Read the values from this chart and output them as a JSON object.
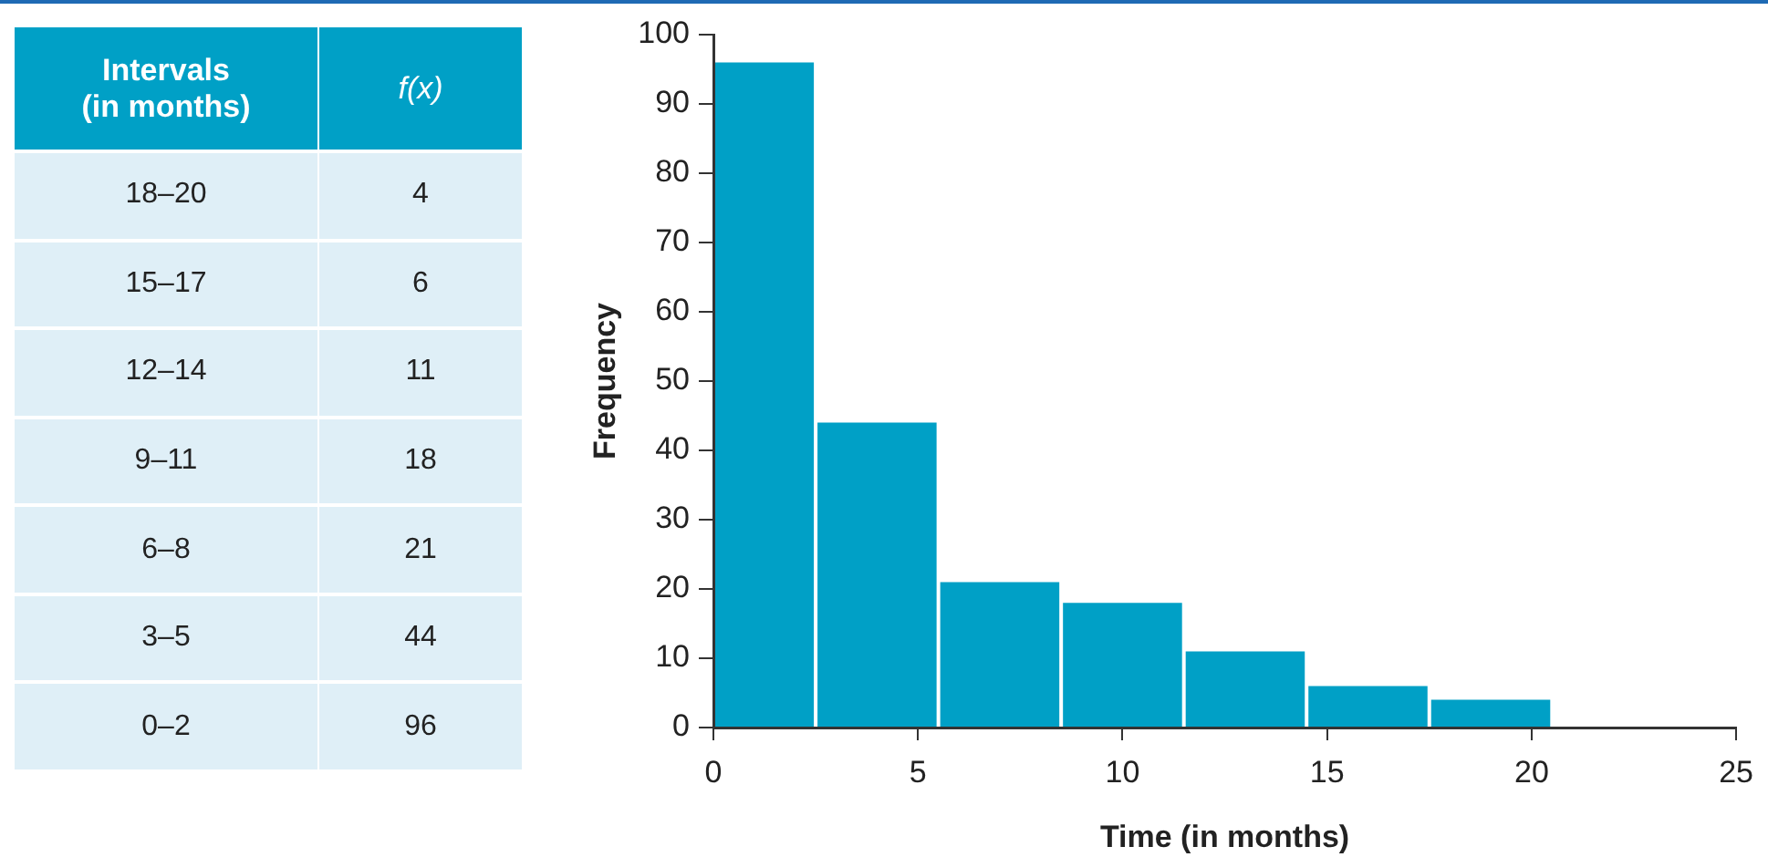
{
  "chart_data": [
    {
      "type": "other",
      "annotations": [
        "Intervals (in months)",
        "f(x)",
        "18–20",
        "4",
        "15–17",
        "6",
        "12–14",
        "11",
        "9–11",
        "18",
        "6–8",
        "21",
        "3–5",
        "44",
        "0–2",
        "96"
      ]
    },
    {
      "type": "histogram",
      "bins": [
        0,
        2.5,
        5.5,
        8.5,
        11.5,
        14.5,
        17.5,
        20.5
      ],
      "values": [
        96,
        44,
        21,
        18,
        11,
        6,
        4
      ],
      "color": "#00a0c6",
      "xlabel": "Time (in months)",
      "ylabel": "Frequency",
      "xlim": [
        0,
        25
      ],
      "xticks": [
        0,
        5,
        10,
        15,
        20,
        25
      ],
      "ylim": [
        0,
        100
      ],
      "yticks": [
        0,
        10,
        20,
        30,
        40,
        50,
        60,
        70,
        80,
        90,
        100
      ],
      "grid": false
    }
  ]
}
